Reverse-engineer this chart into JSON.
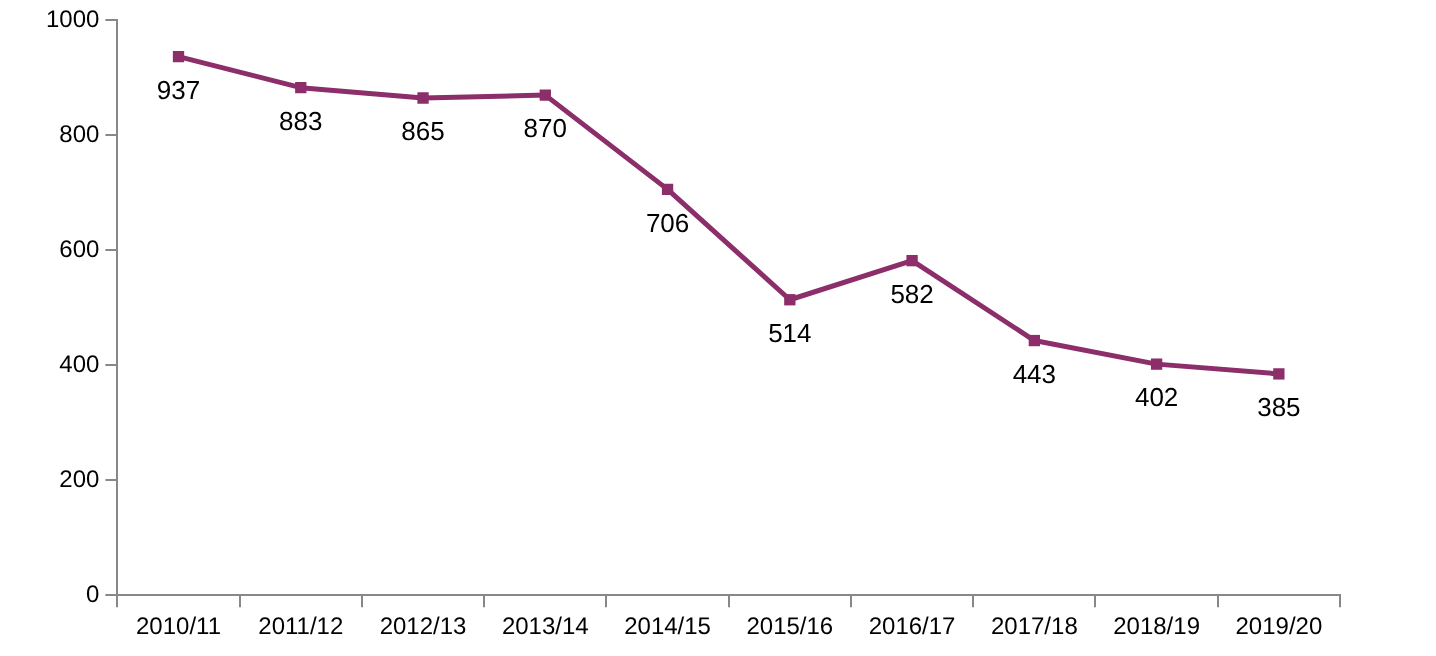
{
  "chart_data": {
    "type": "line",
    "categories": [
      "2010/11",
      "2011/12",
      "2012/13",
      "2013/14",
      "2014/15",
      "2015/16",
      "2016/17",
      "2017/18",
      "2018/19",
      "2019/20"
    ],
    "series": [
      {
        "color": "#8b2e6a",
        "values": [
          937,
          883,
          865,
          870,
          706,
          514,
          582,
          443,
          402,
          385
        ]
      }
    ],
    "ylim": [
      0,
      1000
    ],
    "yticks": [
      0,
      200,
      400,
      600,
      800,
      1000
    ],
    "grid": false,
    "legend": false,
    "marker": "square",
    "line_style": "solid",
    "data_labels": true
  }
}
